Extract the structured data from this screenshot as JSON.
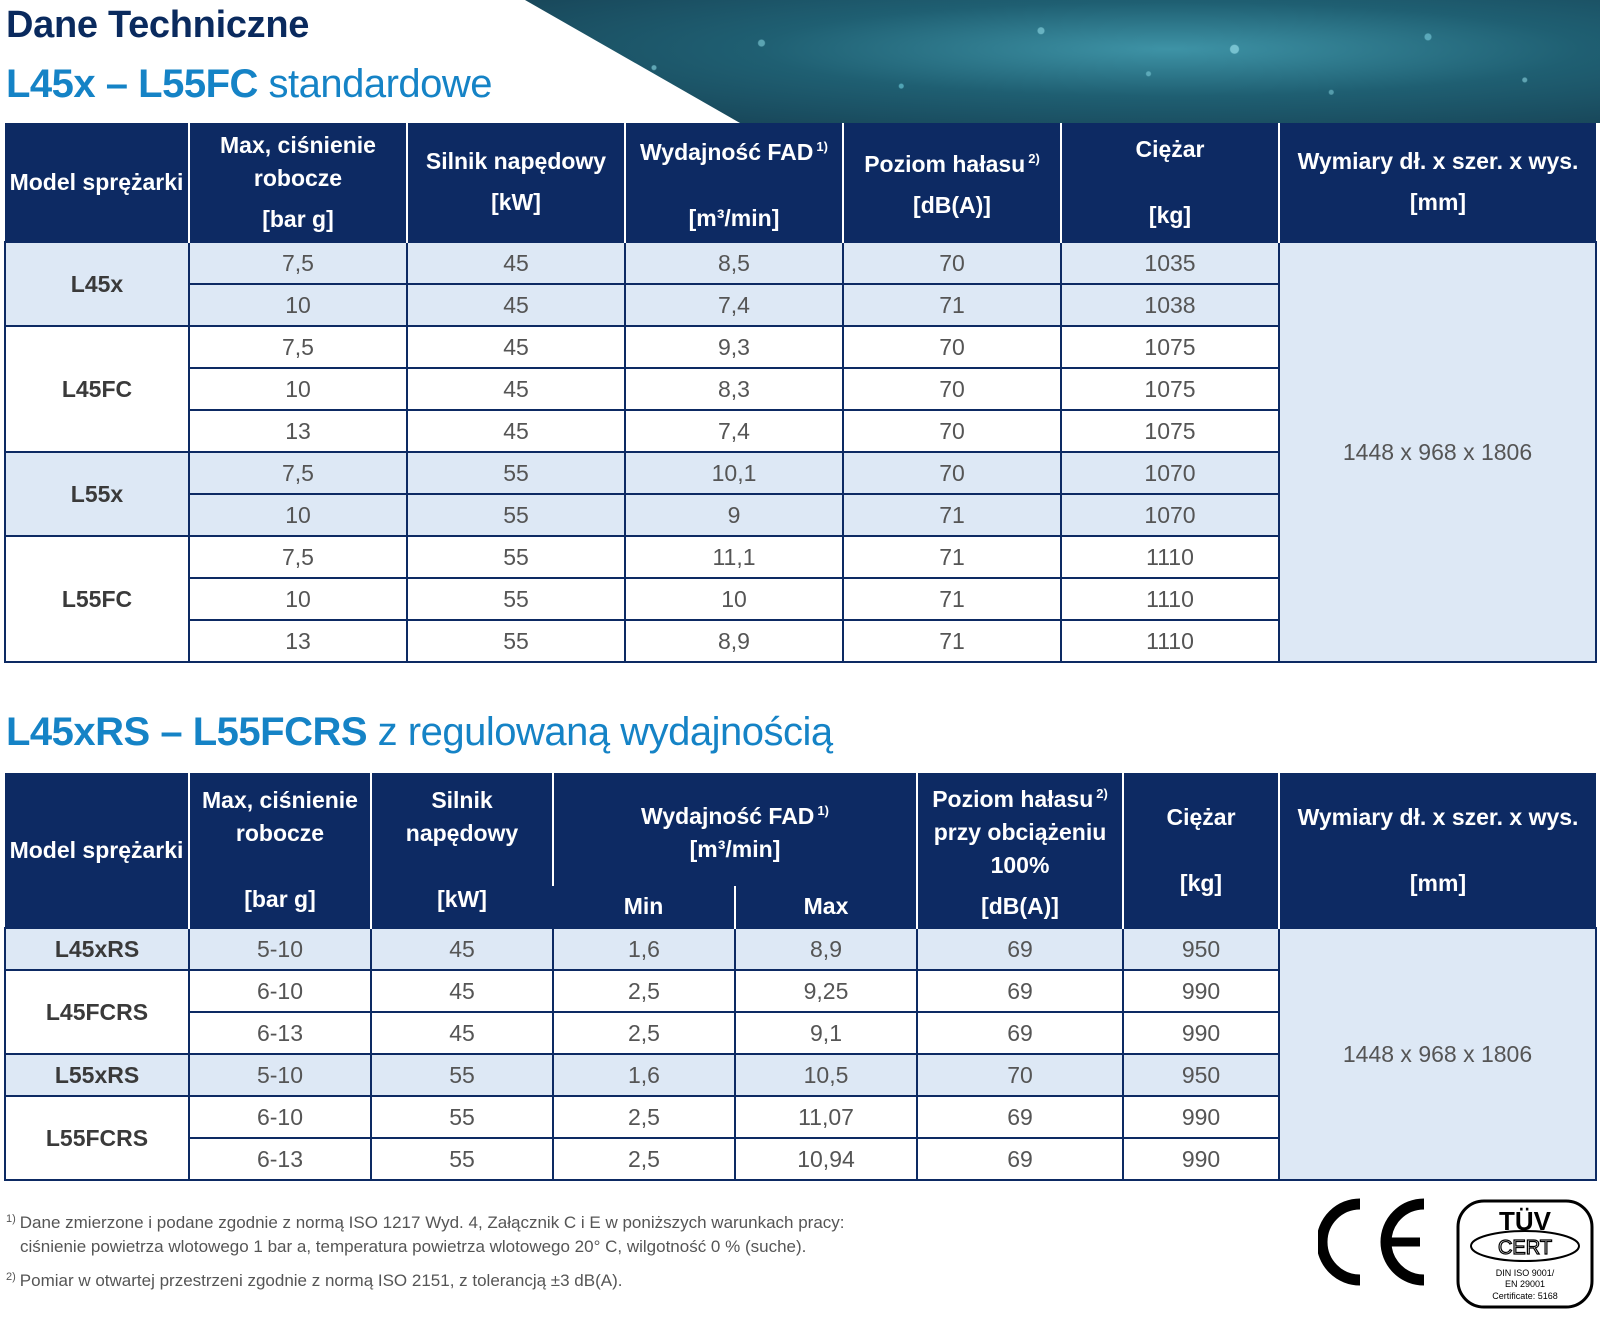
{
  "header": {
    "title": "Dane Techniczne",
    "section1_bold": "L45x – L55FC",
    "section1_rest": " standardowe",
    "section2_bold": "L45xRS – L55FCRS",
    "section2_rest": " z regulowaną wydajnością"
  },
  "table1": {
    "headers": {
      "model": "Model sprężarki",
      "pressure": "Max, ciśnienie robocze",
      "pressure_unit": "[bar g]",
      "motor": "Silnik napędowy",
      "motor_unit": "[kW]",
      "fad": "Wydajność FAD",
      "fad_note": "1)",
      "fad_unit": "[m³/min]",
      "noise": "Poziom hałasu",
      "noise_note": "2)",
      "noise_unit": "[dB(A)]",
      "weight": "Ciężar",
      "weight_unit": "[kg]",
      "dims": "Wymiary dł. x szer. x wys.",
      "dims_unit": "[mm]"
    },
    "dimensions": "1448 x 968 x 1806",
    "groups": [
      {
        "model": "L45x",
        "rows": [
          {
            "pressure": "7,5",
            "motor": "45",
            "fad": "8,5",
            "noise": "70",
            "weight": "1035"
          },
          {
            "pressure": "10",
            "motor": "45",
            "fad": "7,4",
            "noise": "71",
            "weight": "1038"
          }
        ]
      },
      {
        "model": "L45FC",
        "rows": [
          {
            "pressure": "7,5",
            "motor": "45",
            "fad": "9,3",
            "noise": "70",
            "weight": "1075"
          },
          {
            "pressure": "10",
            "motor": "45",
            "fad": "8,3",
            "noise": "70",
            "weight": "1075"
          },
          {
            "pressure": "13",
            "motor": "45",
            "fad": "7,4",
            "noise": "70",
            "weight": "1075"
          }
        ]
      },
      {
        "model": "L55x",
        "rows": [
          {
            "pressure": "7,5",
            "motor": "55",
            "fad": "10,1",
            "noise": "70",
            "weight": "1070"
          },
          {
            "pressure": "10",
            "motor": "55",
            "fad": "9",
            "noise": "71",
            "weight": "1070"
          }
        ]
      },
      {
        "model": "L55FC",
        "rows": [
          {
            "pressure": "7,5",
            "motor": "55",
            "fad": "11,1",
            "noise": "71",
            "weight": "1110"
          },
          {
            "pressure": "10",
            "motor": "55",
            "fad": "10",
            "noise": "71",
            "weight": "1110"
          },
          {
            "pressure": "13",
            "motor": "55",
            "fad": "8,9",
            "noise": "71",
            "weight": "1110"
          }
        ]
      }
    ]
  },
  "table2": {
    "headers": {
      "model": "Model sprężarki",
      "pressure": "Max, ciśnienie robocze",
      "pressure_unit": "[bar g]",
      "motor": "Silnik napędowy",
      "motor_unit": "[kW]",
      "fad": "Wydajność FAD",
      "fad_note": "1)",
      "fad_unit": "[m³/min]",
      "fad_min": "Min",
      "fad_max": "Max",
      "noise": "Poziom hałasu",
      "noise_note": "2)",
      "noise_load": "przy obciążeniu 100%",
      "noise_unit": "[dB(A)]",
      "weight": "Ciężar",
      "weight_unit": "[kg]",
      "dims": "Wymiary dł. x szer. x wys.",
      "dims_unit": "[mm]"
    },
    "dimensions": "1448 x 968 x 1806",
    "groups": [
      {
        "model": "L45xRS",
        "rows": [
          {
            "pressure": "5-10",
            "motor": "45",
            "min": "1,6",
            "max": "8,9",
            "noise": "69",
            "weight": "950"
          }
        ]
      },
      {
        "model": "L45FCRS",
        "rows": [
          {
            "pressure": "6-10",
            "motor": "45",
            "min": "2,5",
            "max": "9,25",
            "noise": "69",
            "weight": "990"
          },
          {
            "pressure": "6-13",
            "motor": "45",
            "min": "2,5",
            "max": "9,1",
            "noise": "69",
            "weight": "990"
          }
        ]
      },
      {
        "model": "L55xRS",
        "rows": [
          {
            "pressure": "5-10",
            "motor": "55",
            "min": "1,6",
            "max": "10,5",
            "noise": "70",
            "weight": "950"
          }
        ]
      },
      {
        "model": "L55FCRS",
        "rows": [
          {
            "pressure": "6-10",
            "motor": "55",
            "min": "2,5",
            "max": "11,07",
            "noise": "69",
            "weight": "990"
          },
          {
            "pressure": "6-13",
            "motor": "55",
            "min": "2,5",
            "max": "10,94",
            "noise": "69",
            "weight": "990"
          }
        ]
      }
    ]
  },
  "footnotes": {
    "note1_mark": "1)",
    "note1_line1": "Dane zmierzone i podane zgodnie z normą ISO 1217 Wyd. 4, Załącznik C i E w poniższych warunkach pracy:",
    "note1_line2": "ciśnienie powietrza wlotowego 1 bar a, temperatura powietrza wlotowego 20° C, wilgotność 0 % (suche).",
    "note2_mark": "2)",
    "note2_line1": "Pomiar w otwartej przestrzeni zgodnie z normą ISO 2151, z tolerancją ±3 dB(A)."
  },
  "certs": {
    "ce": "CE",
    "tuv_top": "TÜV",
    "tuv_cert": "CERT",
    "tuv_line1": "DIN ISO 9001/",
    "tuv_line2": "EN 29001",
    "tuv_line3": "Certificate: 5168"
  },
  "colors": {
    "header_bg": "#0d2a63",
    "title": "#0a2a5e",
    "accent": "#1583c6",
    "row_shade": "#dde8f5"
  }
}
